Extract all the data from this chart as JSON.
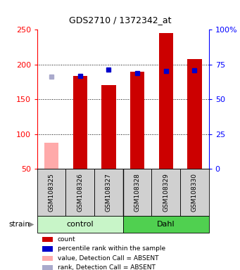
{
  "title": "GDS2710 / 1372342_at",
  "samples": [
    "GSM108325",
    "GSM108326",
    "GSM108327",
    "GSM108328",
    "GSM108329",
    "GSM108330"
  ],
  "count_values": [
    null,
    183,
    170,
    190,
    245,
    208
  ],
  "count_absent": [
    87,
    null,
    null,
    null,
    null,
    null
  ],
  "rank_values": [
    null,
    183,
    193,
    188,
    191,
    192
  ],
  "rank_absent": [
    182,
    null,
    null,
    null,
    null,
    null
  ],
  "ylim": [
    50,
    250
  ],
  "left_ticks": [
    50,
    100,
    150,
    200,
    250
  ],
  "right_ticks": [
    0,
    25,
    50,
    75,
    100
  ],
  "right_tick_labels": [
    "0",
    "25",
    "50",
    "75",
    "100%"
  ],
  "bar_width": 0.5,
  "count_color": "#cc0000",
  "rank_color": "#0000cc",
  "count_absent_color": "#ffaaaa",
  "rank_absent_color": "#aaaacc",
  "title_fontsize": 9,
  "axis_fontsize": 8,
  "legend": [
    {
      "label": "count",
      "color": "#cc0000"
    },
    {
      "label": "percentile rank within the sample",
      "color": "#0000cc"
    },
    {
      "label": "value, Detection Call = ABSENT",
      "color": "#ffaaaa"
    },
    {
      "label": "rank, Detection Call = ABSENT",
      "color": "#aaaacc"
    }
  ],
  "group_control_color": "#c8f5c8",
  "group_dahl_color": "#50d050",
  "group_label_fontsize": 8,
  "sample_label_fontsize": 6.5
}
